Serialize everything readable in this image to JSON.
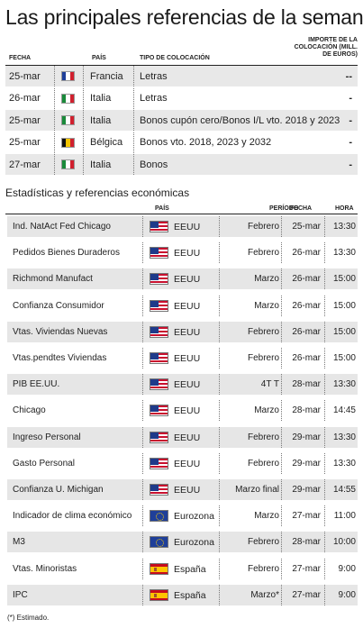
{
  "title": "Las principales referencias de la semana",
  "placements": {
    "headers": {
      "fecha": "FECHA",
      "pais": "PAÍS",
      "tipo": "TIPO DE COLOCACIÓN",
      "importe": "IMPORTE DE LA COLOCACIÓN (MILL. DE EUROS)"
    },
    "rows": [
      {
        "fecha": "25-mar",
        "pais": "Francia",
        "flag": "france-flag-icon",
        "tipo": "Letras",
        "importe": "--"
      },
      {
        "fecha": "26-mar",
        "pais": "Italia",
        "flag": "italy-flag-icon",
        "tipo": "Letras",
        "importe": "-"
      },
      {
        "fecha": "25-mar",
        "pais": "Italia",
        "flag": "italy-flag-icon",
        "tipo": "Bonos cupón cero/Bonos I/L vto. 2018 y 2023",
        "importe": "-"
      },
      {
        "fecha": "25-mar",
        "pais": "Bélgica",
        "flag": "belgium-flag-icon",
        "tipo": "Bonos vto. 2018, 2023 y 2032",
        "importe": "-"
      },
      {
        "fecha": "27-mar",
        "pais": "Italia",
        "flag": "italy-flag-icon",
        "tipo": "Bonos",
        "importe": "-"
      }
    ]
  },
  "stats": {
    "section_title": "Estadísticas y referencias económicas",
    "headers": {
      "pais": "PAÍS",
      "periodo": "PERÍODO",
      "fecha": "FECHA",
      "hora": "HORA"
    },
    "rows": [
      {
        "indicador": "Ind. NatAct Fed Chicago",
        "pais": "EEUU",
        "flag": "usa-flag-icon",
        "periodo": "Febrero",
        "fecha": "25-mar",
        "hora": "13:30"
      },
      {
        "indicador": "Pedidos Bienes Duraderos",
        "pais": "EEUU",
        "flag": "usa-flag-icon",
        "periodo": "Febrero",
        "fecha": "26-mar",
        "hora": "13:30"
      },
      {
        "indicador": "Richmond Manufact",
        "pais": "EEUU",
        "flag": "usa-flag-icon",
        "periodo": "Marzo",
        "fecha": "26-mar",
        "hora": "15:00"
      },
      {
        "indicador": "Confianza Consumidor",
        "pais": "EEUU",
        "flag": "usa-flag-icon",
        "periodo": "Marzo",
        "fecha": "26-mar",
        "hora": "15:00"
      },
      {
        "indicador": "Vtas. Viviendas Nuevas",
        "pais": "EEUU",
        "flag": "usa-flag-icon",
        "periodo": "Febrero",
        "fecha": "26-mar",
        "hora": "15:00"
      },
      {
        "indicador": "Vtas.pendtes Viviendas",
        "pais": "EEUU",
        "flag": "usa-flag-icon",
        "periodo": "Febrero",
        "fecha": "26-mar",
        "hora": "15:00"
      },
      {
        "indicador": "PIB EE.UU.",
        "pais": "EEUU",
        "flag": "usa-flag-icon",
        "periodo": "4T T",
        "fecha": "28-mar",
        "hora": "13:30"
      },
      {
        "indicador": "Chicago",
        "pais": "EEUU",
        "flag": "usa-flag-icon",
        "periodo": "Marzo",
        "fecha": "28-mar",
        "hora": "14:45"
      },
      {
        "indicador": "Ingreso Personal",
        "pais": "EEUU",
        "flag": "usa-flag-icon",
        "periodo": "Febrero",
        "fecha": "29-mar",
        "hora": "13:30"
      },
      {
        "indicador": "Gasto Personal",
        "pais": "EEUU",
        "flag": "usa-flag-icon",
        "periodo": "Febrero",
        "fecha": "29-mar",
        "hora": "13:30"
      },
      {
        "indicador": "Confianza U. Michigan",
        "pais": "EEUU",
        "flag": "usa-flag-icon",
        "periodo": "Marzo final",
        "fecha": "29-mar",
        "hora": "14:55"
      },
      {
        "indicador": "Indicador de clima económico",
        "pais": "Eurozona",
        "flag": "eu-flag-icon",
        "periodo": "Marzo",
        "fecha": "27-mar",
        "hora": "11:00"
      },
      {
        "indicador": "M3",
        "pais": "Eurozona",
        "flag": "eu-flag-icon",
        "periodo": "Febrero",
        "fecha": "28-mar",
        "hora": "10:00"
      },
      {
        "indicador": "Vtas. Minoristas",
        "pais": "España",
        "flag": "spain-flag-icon",
        "periodo": "Febrero",
        "fecha": "27-mar",
        "hora": "9:00"
      },
      {
        "indicador": "IPC",
        "pais": "España",
        "flag": "spain-flag-icon",
        "periodo": "Marzo*",
        "fecha": "27-mar",
        "hora": "9:00"
      }
    ],
    "footnote": "(*) Estimado."
  }
}
